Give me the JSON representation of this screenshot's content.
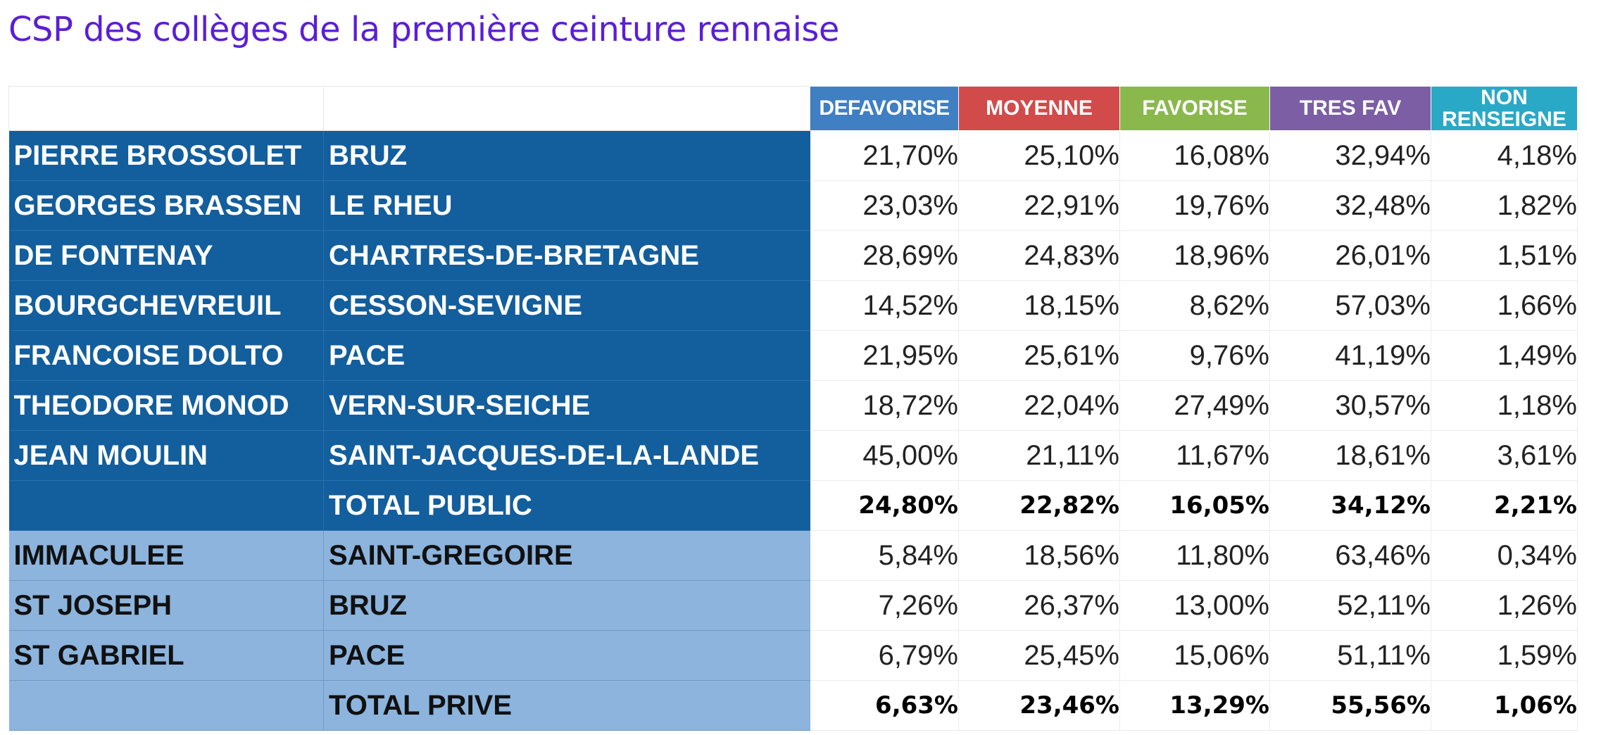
{
  "title": "CSP des collèges de la première ceinture rennaise",
  "headers": [
    "DEFAVORISE",
    "MOYENNE",
    "FAVORISE",
    "TRES FAV",
    "NON RENSEIGNE"
  ],
  "header_colors": {
    "defavorise": "#3f7fc2",
    "moyenne": "#d14b4b",
    "favorise": "#8ab84d",
    "tres_fav": "#7b5ea3",
    "non_renseigne": "#2aa9c7"
  },
  "public_rows": [
    {
      "name": "PIERRE BROSSOLET",
      "city": "BRUZ",
      "values": [
        "21,70%",
        "25,10%",
        "16,08%",
        "32,94%",
        "4,18%"
      ]
    },
    {
      "name": "GEORGES BRASSEN",
      "city": "LE RHEU",
      "values": [
        "23,03%",
        "22,91%",
        "19,76%",
        "32,48%",
        "1,82%"
      ]
    },
    {
      "name": "DE FONTENAY",
      "city": "CHARTRES-DE-BRETAGNE",
      "values": [
        "28,69%",
        "24,83%",
        "18,96%",
        "26,01%",
        "1,51%"
      ]
    },
    {
      "name": "BOURGCHEVREUIL",
      "city": "CESSON-SEVIGNE",
      "values": [
        "14,52%",
        "18,15%",
        "8,62%",
        "57,03%",
        "1,66%"
      ]
    },
    {
      "name": "FRANCOISE DOLTO",
      "city": "PACE",
      "values": [
        "21,95%",
        "25,61%",
        "9,76%",
        "41,19%",
        "1,49%"
      ]
    },
    {
      "name": "THEODORE MONOD",
      "city": "VERN-SUR-SEICHE",
      "values": [
        "18,72%",
        "22,04%",
        "27,49%",
        "30,57%",
        "1,18%"
      ]
    },
    {
      "name": "JEAN MOULIN",
      "city": "SAINT-JACQUES-DE-LA-LANDE",
      "values": [
        "45,00%",
        "21,11%",
        "11,67%",
        "18,61%",
        "3,61%"
      ]
    }
  ],
  "total_public": {
    "label": "TOTAL PUBLIC",
    "values": [
      "24,80%",
      "22,82%",
      "16,05%",
      "34,12%",
      "2,21%"
    ]
  },
  "private_rows": [
    {
      "name": "IMMACULEE",
      "city": "SAINT-GREGOIRE",
      "values": [
        "5,84%",
        "18,56%",
        "11,80%",
        "63,46%",
        "0,34%"
      ]
    },
    {
      "name": "ST JOSEPH",
      "city": "BRUZ",
      "values": [
        "7,26%",
        "26,37%",
        "13,00%",
        "52,11%",
        "1,26%"
      ]
    },
    {
      "name": "ST GABRIEL",
      "city": "PACE",
      "values": [
        "6,79%",
        "25,45%",
        "15,06%",
        "51,11%",
        "1,59%"
      ]
    }
  ],
  "total_prive": {
    "label": "TOTAL PRIVE",
    "values": [
      "6,63%",
      "23,46%",
      "13,29%",
      "55,56%",
      "1,06%"
    ]
  }
}
